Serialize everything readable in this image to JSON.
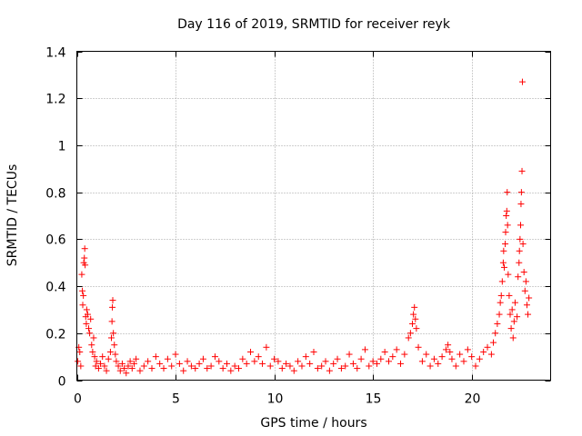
{
  "chart_data": {
    "type": "scatter",
    "title": "Day 116 of 2019, SRMTID for receiver reyk",
    "xlabel": "GPS time / hours",
    "ylabel": "SRMTID / TECUs",
    "xlim": [
      0,
      24
    ],
    "ylim": [
      0,
      1.4
    ],
    "xticks": [
      0,
      5,
      10,
      15,
      20
    ],
    "xtick_labels": [
      "0",
      "5",
      "10",
      "15",
      "20"
    ],
    "yticks": [
      0,
      0.2,
      0.4,
      0.6,
      0.8,
      1,
      1.2,
      1.4
    ],
    "ytick_labels": [
      "0",
      "0.2",
      "0.4",
      "0.6",
      "0.8",
      "1",
      "1.2",
      "1.4"
    ],
    "grid": true,
    "marker": "+",
    "series": [
      {
        "name": "reyk",
        "color": "#ff0000",
        "points": [
          [
            0.05,
            0.08
          ],
          [
            0.1,
            0.14
          ],
          [
            0.15,
            0.12
          ],
          [
            0.2,
            0.06
          ],
          [
            0.25,
            0.45
          ],
          [
            0.28,
            0.38
          ],
          [
            0.3,
            0.32
          ],
          [
            0.33,
            0.36
          ],
          [
            0.35,
            0.5
          ],
          [
            0.38,
            0.52
          ],
          [
            0.4,
            0.56
          ],
          [
            0.42,
            0.49
          ],
          [
            0.45,
            0.27
          ],
          [
            0.48,
            0.24
          ],
          [
            0.5,
            0.3
          ],
          [
            0.55,
            0.28
          ],
          [
            0.6,
            0.22
          ],
          [
            0.65,
            0.2
          ],
          [
            0.7,
            0.26
          ],
          [
            0.75,
            0.15
          ],
          [
            0.8,
            0.12
          ],
          [
            0.85,
            0.18
          ],
          [
            0.9,
            0.1
          ],
          [
            0.95,
            0.06
          ],
          [
            1.0,
            0.08
          ],
          [
            1.1,
            0.05
          ],
          [
            1.2,
            0.07
          ],
          [
            1.3,
            0.1
          ],
          [
            1.4,
            0.06
          ],
          [
            1.5,
            0.04
          ],
          [
            1.6,
            0.09
          ],
          [
            1.7,
            0.12
          ],
          [
            1.75,
            0.18
          ],
          [
            1.78,
            0.25
          ],
          [
            1.8,
            0.31
          ],
          [
            1.82,
            0.34
          ],
          [
            1.85,
            0.2
          ],
          [
            1.9,
            0.15
          ],
          [
            1.95,
            0.11
          ],
          [
            2.0,
            0.08
          ],
          [
            2.1,
            0.06
          ],
          [
            2.2,
            0.04
          ],
          [
            2.3,
            0.07
          ],
          [
            2.4,
            0.05
          ],
          [
            2.5,
            0.03
          ],
          [
            2.6,
            0.06
          ],
          [
            2.7,
            0.08
          ],
          [
            2.8,
            0.05
          ],
          [
            2.9,
            0.07
          ],
          [
            3.0,
            0.09
          ],
          [
            3.2,
            0.04
          ],
          [
            3.4,
            0.06
          ],
          [
            3.6,
            0.08
          ],
          [
            3.8,
            0.05
          ],
          [
            4.0,
            0.1
          ],
          [
            4.2,
            0.07
          ],
          [
            4.4,
            0.05
          ],
          [
            4.6,
            0.09
          ],
          [
            4.8,
            0.06
          ],
          [
            5.0,
            0.11
          ],
          [
            5.2,
            0.07
          ],
          [
            5.4,
            0.04
          ],
          [
            5.6,
            0.08
          ],
          [
            5.8,
            0.06
          ],
          [
            6.0,
            0.05
          ],
          [
            6.2,
            0.07
          ],
          [
            6.4,
            0.09
          ],
          [
            6.6,
            0.05
          ],
          [
            6.8,
            0.06
          ],
          [
            7.0,
            0.1
          ],
          [
            7.2,
            0.08
          ],
          [
            7.4,
            0.05
          ],
          [
            7.6,
            0.07
          ],
          [
            7.8,
            0.04
          ],
          [
            8.0,
            0.06
          ],
          [
            8.2,
            0.05
          ],
          [
            8.4,
            0.09
          ],
          [
            8.6,
            0.07
          ],
          [
            8.8,
            0.12
          ],
          [
            9.0,
            0.08
          ],
          [
            9.2,
            0.1
          ],
          [
            9.4,
            0.07
          ],
          [
            9.6,
            0.14
          ],
          [
            9.8,
            0.06
          ],
          [
            10.0,
            0.09
          ],
          [
            10.2,
            0.08
          ],
          [
            10.4,
            0.05
          ],
          [
            10.6,
            0.07
          ],
          [
            10.8,
            0.06
          ],
          [
            11.0,
            0.04
          ],
          [
            11.2,
            0.08
          ],
          [
            11.4,
            0.06
          ],
          [
            11.6,
            0.1
          ],
          [
            11.8,
            0.07
          ],
          [
            12.0,
            0.12
          ],
          [
            12.2,
            0.05
          ],
          [
            12.4,
            0.06
          ],
          [
            12.6,
            0.08
          ],
          [
            12.8,
            0.04
          ],
          [
            13.0,
            0.07
          ],
          [
            13.2,
            0.09
          ],
          [
            13.4,
            0.05
          ],
          [
            13.6,
            0.06
          ],
          [
            13.8,
            0.11
          ],
          [
            14.0,
            0.07
          ],
          [
            14.2,
            0.05
          ],
          [
            14.4,
            0.09
          ],
          [
            14.6,
            0.13
          ],
          [
            14.8,
            0.06
          ],
          [
            15.0,
            0.08
          ],
          [
            15.2,
            0.07
          ],
          [
            15.4,
            0.09
          ],
          [
            15.6,
            0.12
          ],
          [
            15.8,
            0.08
          ],
          [
            16.0,
            0.1
          ],
          [
            16.2,
            0.13
          ],
          [
            16.4,
            0.07
          ],
          [
            16.6,
            0.11
          ],
          [
            16.8,
            0.18
          ],
          [
            16.9,
            0.2
          ],
          [
            17.0,
            0.24
          ],
          [
            17.05,
            0.28
          ],
          [
            17.1,
            0.31
          ],
          [
            17.15,
            0.26
          ],
          [
            17.2,
            0.22
          ],
          [
            17.3,
            0.14
          ],
          [
            17.5,
            0.08
          ],
          [
            17.7,
            0.11
          ],
          [
            17.9,
            0.06
          ],
          [
            18.1,
            0.09
          ],
          [
            18.3,
            0.07
          ],
          [
            18.5,
            0.1
          ],
          [
            18.7,
            0.13
          ],
          [
            18.8,
            0.15
          ],
          [
            18.9,
            0.12
          ],
          [
            19.0,
            0.09
          ],
          [
            19.2,
            0.06
          ],
          [
            19.4,
            0.11
          ],
          [
            19.6,
            0.08
          ],
          [
            19.8,
            0.13
          ],
          [
            20.0,
            0.1
          ],
          [
            20.2,
            0.06
          ],
          [
            20.4,
            0.09
          ],
          [
            20.6,
            0.12
          ],
          [
            20.8,
            0.14
          ],
          [
            21.0,
            0.11
          ],
          [
            21.1,
            0.16
          ],
          [
            21.2,
            0.2
          ],
          [
            21.3,
            0.24
          ],
          [
            21.4,
            0.28
          ],
          [
            21.45,
            0.33
          ],
          [
            21.5,
            0.36
          ],
          [
            21.55,
            0.42
          ],
          [
            21.6,
            0.5
          ],
          [
            21.62,
            0.55
          ],
          [
            21.65,
            0.48
          ],
          [
            21.7,
            0.58
          ],
          [
            21.72,
            0.63
          ],
          [
            21.75,
            0.7
          ],
          [
            21.78,
            0.72
          ],
          [
            21.8,
            0.8
          ],
          [
            21.82,
            0.66
          ],
          [
            21.85,
            0.45
          ],
          [
            21.9,
            0.36
          ],
          [
            21.95,
            0.28
          ],
          [
            22.0,
            0.22
          ],
          [
            22.05,
            0.3
          ],
          [
            22.1,
            0.18
          ],
          [
            22.15,
            0.25
          ],
          [
            22.2,
            0.33
          ],
          [
            22.3,
            0.27
          ],
          [
            22.35,
            0.44
          ],
          [
            22.4,
            0.5
          ],
          [
            22.42,
            0.55
          ],
          [
            22.45,
            0.6
          ],
          [
            22.48,
            0.66
          ],
          [
            22.5,
            0.75
          ],
          [
            22.52,
            0.8
          ],
          [
            22.55,
            0.89
          ],
          [
            22.57,
            1.27
          ],
          [
            22.6,
            0.58
          ],
          [
            22.65,
            0.46
          ],
          [
            22.7,
            0.38
          ],
          [
            22.75,
            0.42
          ],
          [
            22.8,
            0.32
          ],
          [
            22.85,
            0.28
          ],
          [
            22.9,
            0.35
          ]
        ]
      }
    ]
  }
}
